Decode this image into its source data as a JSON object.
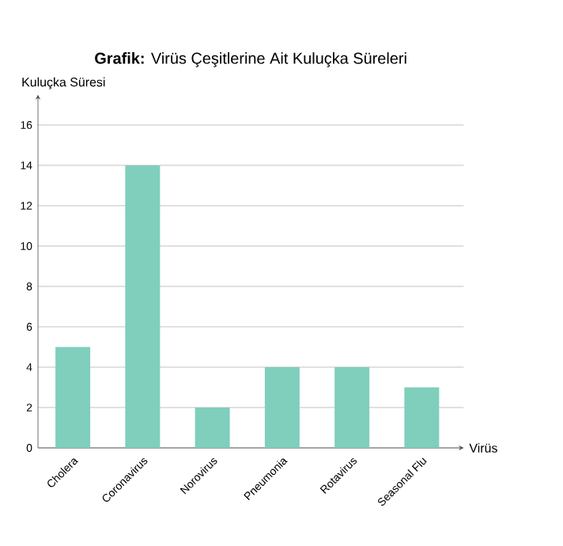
{
  "chart_data": {
    "type": "bar",
    "title": "**Grafik:** Virüs Çeşitlerine Ait Kuluçka Süreleri",
    "xlabel": "Virüs",
    "ylabel": "Kuluçka Süresi",
    "categories": [
      "Cholera",
      "Coronavirus",
      "Norovirus",
      "Pneumonia",
      "Rotavirus",
      "Seasonal Flu"
    ],
    "values": [
      5,
      14,
      2,
      4,
      4,
      3
    ],
    "color": "#7fcfbc",
    "ylim": [
      0,
      17.5
    ],
    "yticks": [
      0,
      2,
      4,
      6,
      8,
      10,
      12,
      14,
      16
    ],
    "grid": "y"
  }
}
